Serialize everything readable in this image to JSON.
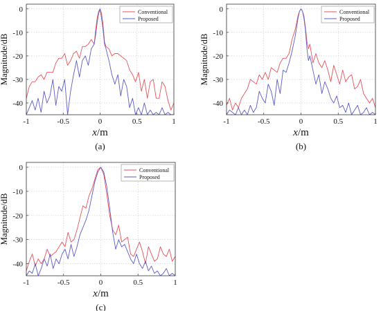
{
  "chart_data": [
    {
      "type": "line",
      "panel_label": "(a)",
      "xlabel": "x/m",
      "ylabel": "Magnitude/dB",
      "xlim": [
        -1,
        1
      ],
      "ylim": [
        -45,
        2
      ],
      "xticks": [
        -1,
        -0.5,
        0,
        0.5,
        1
      ],
      "xtick_labels": [
        "-1",
        "-0.5",
        "0",
        "0.5",
        "1"
      ],
      "yticks": [
        0,
        -10,
        -20,
        -30,
        -40
      ],
      "ytick_labels": [
        "0",
        "-10",
        "-20",
        "-30",
        "-40"
      ],
      "grid": true,
      "legend": "top-right",
      "series": [
        {
          "name": "Conventional",
          "color": "#e8505a",
          "x": [
            -1.0,
            -0.96,
            -0.92,
            -0.88,
            -0.84,
            -0.8,
            -0.76,
            -0.72,
            -0.68,
            -0.64,
            -0.6,
            -0.56,
            -0.52,
            -0.48,
            -0.44,
            -0.4,
            -0.36,
            -0.32,
            -0.28,
            -0.24,
            -0.2,
            -0.16,
            -0.12,
            -0.08,
            -0.06,
            -0.04,
            -0.02,
            0.0,
            0.02,
            0.04,
            0.06,
            0.08,
            0.12,
            0.16,
            0.2,
            0.24,
            0.28,
            0.32,
            0.36,
            0.4,
            0.44,
            0.48,
            0.52,
            0.56,
            0.6,
            0.64,
            0.68,
            0.72,
            0.76,
            0.8,
            0.84,
            0.88,
            0.92,
            0.96,
            1.0
          ],
          "y": [
            -38,
            -33,
            -31,
            -31,
            -29,
            -28,
            -30,
            -27,
            -27,
            -27,
            -23,
            -21,
            -21,
            -19,
            -24,
            -22,
            -19,
            -18,
            -21,
            -16,
            -16,
            -15,
            -13,
            -15,
            -9,
            -4,
            -1,
            0,
            -2,
            -7,
            -14,
            -16,
            -17,
            -20,
            -19,
            -19,
            -20,
            -21,
            -22,
            -26,
            -28,
            -31,
            -27,
            -35,
            -30,
            -38,
            -31,
            -30,
            -38,
            -38,
            -31,
            -33,
            -39,
            -43,
            -40
          ]
        },
        {
          "name": "Proposed",
          "color": "#5a5ac8",
          "x": [
            -1.0,
            -0.96,
            -0.92,
            -0.88,
            -0.84,
            -0.8,
            -0.76,
            -0.72,
            -0.68,
            -0.64,
            -0.6,
            -0.56,
            -0.52,
            -0.48,
            -0.44,
            -0.4,
            -0.36,
            -0.32,
            -0.28,
            -0.24,
            -0.2,
            -0.16,
            -0.12,
            -0.08,
            -0.06,
            -0.04,
            -0.02,
            0.0,
            0.02,
            0.04,
            0.06,
            0.08,
            0.12,
            0.16,
            0.2,
            0.24,
            0.28,
            0.32,
            0.36,
            0.4,
            0.44,
            0.48,
            0.52,
            0.56,
            0.6,
            0.64,
            0.68,
            0.72,
            0.76,
            0.8,
            0.84,
            0.88,
            0.92,
            0.96,
            1.0
          ],
          "y": [
            -45,
            -42,
            -39,
            -43,
            -38,
            -44,
            -35,
            -40,
            -37,
            -30,
            -41,
            -33,
            -35,
            -30,
            -45,
            -35,
            -28,
            -22,
            -29,
            -22,
            -20,
            -24,
            -17,
            -15,
            -11,
            -6,
            -2,
            0,
            -4,
            -9,
            -15,
            -17,
            -22,
            -28,
            -32,
            -28,
            -37,
            -30,
            -33,
            -42,
            -38,
            -45,
            -42,
            -45,
            -40,
            -45,
            -43,
            -45,
            -44,
            -45,
            -42,
            -45,
            -44,
            -45,
            -45
          ]
        }
      ]
    },
    {
      "type": "line",
      "panel_label": "(b)",
      "xlabel": "x/m",
      "ylabel": "Magnitude/dB",
      "xlim": [
        -1,
        1
      ],
      "ylim": [
        -45,
        2
      ],
      "xticks": [
        -1,
        -0.5,
        0,
        0.5,
        1
      ],
      "xtick_labels": [
        "-1",
        "-0.5",
        "0",
        "0.5",
        "1"
      ],
      "yticks": [
        0,
        -10,
        -20,
        -30,
        -40
      ],
      "ytick_labels": [
        "0",
        "-10",
        "-20",
        "-30",
        "-40"
      ],
      "grid": true,
      "legend": "top-right",
      "series": [
        {
          "name": "Conventional",
          "color": "#e8505a",
          "x": [
            -1.0,
            -0.96,
            -0.92,
            -0.88,
            -0.84,
            -0.8,
            -0.76,
            -0.72,
            -0.68,
            -0.64,
            -0.6,
            -0.56,
            -0.52,
            -0.48,
            -0.44,
            -0.4,
            -0.36,
            -0.32,
            -0.28,
            -0.24,
            -0.2,
            -0.16,
            -0.12,
            -0.08,
            -0.06,
            -0.04,
            -0.02,
            0.0,
            0.02,
            0.04,
            0.06,
            0.08,
            0.1,
            0.12,
            0.16,
            0.2,
            0.24,
            0.28,
            0.32,
            0.36,
            0.4,
            0.44,
            0.48,
            0.52,
            0.56,
            0.6,
            0.64,
            0.68,
            0.72,
            0.76,
            0.8,
            0.84,
            0.88,
            0.92,
            0.96,
            1.0
          ],
          "y": [
            -41,
            -38,
            -43,
            -40,
            -42,
            -38,
            -36,
            -34,
            -30,
            -31,
            -32,
            -28,
            -30,
            -27,
            -30,
            -25,
            -26,
            -27,
            -23,
            -21,
            -21,
            -19,
            -13,
            -9,
            -6,
            -3,
            -1,
            0,
            -1,
            -3,
            -8,
            -14,
            -17,
            -15,
            -23,
            -19,
            -23,
            -25,
            -22,
            -26,
            -31,
            -24,
            -28,
            -32,
            -26,
            -31,
            -29,
            -28,
            -34,
            -33,
            -30,
            -36,
            -38,
            -40,
            -38,
            -42
          ]
        },
        {
          "name": "Proposed",
          "color": "#5a5ac8",
          "x": [
            -1.0,
            -0.96,
            -0.92,
            -0.88,
            -0.84,
            -0.8,
            -0.76,
            -0.72,
            -0.68,
            -0.64,
            -0.6,
            -0.56,
            -0.52,
            -0.48,
            -0.44,
            -0.4,
            -0.36,
            -0.32,
            -0.28,
            -0.24,
            -0.2,
            -0.16,
            -0.12,
            -0.08,
            -0.06,
            -0.04,
            -0.02,
            0.0,
            0.02,
            0.04,
            0.06,
            0.08,
            0.1,
            0.12,
            0.16,
            0.2,
            0.24,
            0.28,
            0.32,
            0.36,
            0.4,
            0.44,
            0.48,
            0.52,
            0.56,
            0.6,
            0.64,
            0.68,
            0.72,
            0.76,
            0.8,
            0.84,
            0.88,
            0.92,
            0.96,
            1.0
          ],
          "y": [
            -45,
            -43,
            -44,
            -45,
            -42,
            -45,
            -43,
            -45,
            -41,
            -44,
            -42,
            -35,
            -38,
            -40,
            -32,
            -35,
            -41,
            -30,
            -36,
            -26,
            -27,
            -23,
            -18,
            -12,
            -8,
            -4,
            -1,
            0,
            -1,
            -4,
            -9,
            -17,
            -22,
            -20,
            -26,
            -32,
            -28,
            -36,
            -31,
            -34,
            -38,
            -40,
            -37,
            -42,
            -41,
            -44,
            -40,
            -45,
            -43,
            -41,
            -45,
            -44,
            -42,
            -45,
            -44,
            -45
          ]
        }
      ]
    },
    {
      "type": "line",
      "panel_label": "(c)",
      "xlabel": "x/m",
      "ylabel": "Magnitude/dB",
      "xlim": [
        -1,
        1
      ],
      "ylim": [
        -45,
        2
      ],
      "xticks": [
        -1,
        -0.5,
        0,
        0.5,
        1
      ],
      "xtick_labels": [
        "-1",
        "-0.5",
        "0",
        "0.5",
        "1"
      ],
      "yticks": [
        0,
        -10,
        -20,
        -30,
        -40
      ],
      "ytick_labels": [
        "0",
        "-10",
        "-20",
        "-30",
        "-40"
      ],
      "grid": true,
      "legend": "top-right",
      "series": [
        {
          "name": "Conventional",
          "color": "#e8505a",
          "x": [
            -1.0,
            -0.96,
            -0.92,
            -0.88,
            -0.84,
            -0.8,
            -0.76,
            -0.72,
            -0.68,
            -0.64,
            -0.6,
            -0.56,
            -0.52,
            -0.48,
            -0.44,
            -0.4,
            -0.36,
            -0.32,
            -0.28,
            -0.24,
            -0.2,
            -0.16,
            -0.12,
            -0.08,
            -0.04,
            0.0,
            0.04,
            0.08,
            0.12,
            0.16,
            0.2,
            0.24,
            0.28,
            0.32,
            0.36,
            0.4,
            0.44,
            0.48,
            0.52,
            0.56,
            0.6,
            0.64,
            0.68,
            0.72,
            0.76,
            0.8,
            0.84,
            0.88,
            0.92,
            0.96,
            1.0
          ],
          "y": [
            -43,
            -39,
            -36,
            -41,
            -38,
            -40,
            -38,
            -34,
            -37,
            -36,
            -35,
            -33,
            -31,
            -33,
            -27,
            -31,
            -30,
            -26,
            -21,
            -16,
            -17,
            -12,
            -9,
            -5,
            -1,
            0,
            -3,
            -11,
            -20,
            -26,
            -28,
            -24,
            -31,
            -30,
            -29,
            -36,
            -37,
            -34,
            -31,
            -35,
            -40,
            -33,
            -36,
            -39,
            -38,
            -33,
            -36,
            -37,
            -34,
            -39,
            -37
          ]
        },
        {
          "name": "Proposed",
          "color": "#5a5ac8",
          "x": [
            -1.0,
            -0.96,
            -0.92,
            -0.88,
            -0.84,
            -0.8,
            -0.76,
            -0.72,
            -0.68,
            -0.64,
            -0.6,
            -0.56,
            -0.52,
            -0.48,
            -0.44,
            -0.4,
            -0.36,
            -0.32,
            -0.28,
            -0.24,
            -0.2,
            -0.16,
            -0.12,
            -0.08,
            -0.04,
            0.0,
            0.04,
            0.08,
            0.12,
            0.16,
            0.2,
            0.24,
            0.28,
            0.32,
            0.36,
            0.4,
            0.44,
            0.48,
            0.52,
            0.56,
            0.6,
            0.64,
            0.68,
            0.72,
            0.76,
            0.8,
            0.84,
            0.88,
            0.92,
            0.96,
            1.0
          ],
          "y": [
            -45,
            -43,
            -44,
            -40,
            -45,
            -42,
            -38,
            -41,
            -36,
            -42,
            -38,
            -40,
            -36,
            -34,
            -38,
            -32,
            -37,
            -33,
            -28,
            -25,
            -22,
            -18,
            -12,
            -6,
            -2,
            0,
            -2,
            -8,
            -17,
            -27,
            -34,
            -30,
            -33,
            -32,
            -35,
            -38,
            -40,
            -36,
            -40,
            -42,
            -39,
            -43,
            -41,
            -44,
            -43,
            -45,
            -44,
            -42,
            -45,
            -44,
            -45
          ]
        }
      ]
    }
  ]
}
